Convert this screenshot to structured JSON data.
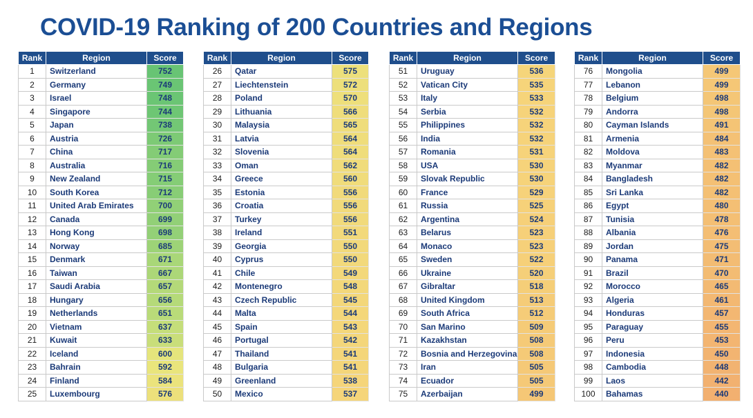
{
  "title": "COVID-19 Ranking of 200 Countries and Regions",
  "headers": {
    "rank": "Rank",
    "region": "Region",
    "score": "Score"
  },
  "score_scale": {
    "max": 752,
    "min": 440
  },
  "tables": [
    [
      {
        "rank": "1",
        "region": "Switzerland",
        "score": 752
      },
      {
        "rank": "2",
        "region": "Germany",
        "score": 749
      },
      {
        "rank": "3",
        "region": "Israel",
        "score": 748
      },
      {
        "rank": "4",
        "region": "Singapore",
        "score": 744
      },
      {
        "rank": "5",
        "region": "Japan",
        "score": 738
      },
      {
        "rank": "6",
        "region": "Austria",
        "score": 726
      },
      {
        "rank": "7",
        "region": "China",
        "score": 717
      },
      {
        "rank": "8",
        "region": "Australia",
        "score": 716
      },
      {
        "rank": "9",
        "region": "New Zealand",
        "score": 715
      },
      {
        "rank": "10",
        "region": "South Korea",
        "score": 712
      },
      {
        "rank": "11",
        "region": "United Arab Emirates",
        "score": 700
      },
      {
        "rank": "12",
        "region": "Canada",
        "score": 699
      },
      {
        "rank": "13",
        "region": "Hong Kong",
        "score": 698
      },
      {
        "rank": "14",
        "region": "Norway",
        "score": 685
      },
      {
        "rank": "15",
        "region": "Denmark",
        "score": 671
      },
      {
        "rank": "16",
        "region": "Taiwan",
        "score": 667
      },
      {
        "rank": "17",
        "region": "Saudi Arabia",
        "score": 657
      },
      {
        "rank": "18",
        "region": "Hungary",
        "score": 656
      },
      {
        "rank": "19",
        "region": "Netherlands",
        "score": 651
      },
      {
        "rank": "20",
        "region": "Vietnam",
        "score": 637
      },
      {
        "rank": "21",
        "region": "Kuwait",
        "score": 633
      },
      {
        "rank": "22",
        "region": "Iceland",
        "score": 600
      },
      {
        "rank": "23",
        "region": "Bahrain",
        "score": 592
      },
      {
        "rank": "24",
        "region": "Finland",
        "score": 584
      },
      {
        "rank": "25",
        "region": "Luxembourg",
        "score": 576
      }
    ],
    [
      {
        "rank": "26",
        "region": "Qatar",
        "score": 575
      },
      {
        "rank": "27",
        "region": "Liechtenstein",
        "score": 572
      },
      {
        "rank": "28",
        "region": "Poland",
        "score": 570
      },
      {
        "rank": "29",
        "region": "Lithuania",
        "score": 566
      },
      {
        "rank": "30",
        "region": "Malaysia",
        "score": 565
      },
      {
        "rank": "31",
        "region": "Latvia",
        "score": 564
      },
      {
        "rank": "32",
        "region": "Slovenia",
        "score": 564
      },
      {
        "rank": "33",
        "region": "Oman",
        "score": 562
      },
      {
        "rank": "34",
        "region": "Greece",
        "score": 560
      },
      {
        "rank": "35",
        "region": "Estonia",
        "score": 556
      },
      {
        "rank": "36",
        "region": "Croatia",
        "score": 556
      },
      {
        "rank": "37",
        "region": "Turkey",
        "score": 556
      },
      {
        "rank": "38",
        "region": "Ireland",
        "score": 551
      },
      {
        "rank": "39",
        "region": "Georgia",
        "score": 550
      },
      {
        "rank": "40",
        "region": "Cyprus",
        "score": 550
      },
      {
        "rank": "41",
        "region": "Chile",
        "score": 549
      },
      {
        "rank": "42",
        "region": "Montenegro",
        "score": 548
      },
      {
        "rank": "43",
        "region": "Czech Republic",
        "score": 545
      },
      {
        "rank": "44",
        "region": "Malta",
        "score": 544
      },
      {
        "rank": "45",
        "region": "Spain",
        "score": 543
      },
      {
        "rank": "46",
        "region": "Portugal",
        "score": 542
      },
      {
        "rank": "47",
        "region": "Thailand",
        "score": 541
      },
      {
        "rank": "48",
        "region": "Bulgaria",
        "score": 541
      },
      {
        "rank": "49",
        "region": "Greenland",
        "score": 538
      },
      {
        "rank": "50",
        "region": "Mexico",
        "score": 537
      }
    ],
    [
      {
        "rank": "51",
        "region": "Uruguay",
        "score": 536
      },
      {
        "rank": "52",
        "region": "Vatican City",
        "score": 535
      },
      {
        "rank": "53",
        "region": "Italy",
        "score": 533
      },
      {
        "rank": "54",
        "region": "Serbia",
        "score": 532
      },
      {
        "rank": "55",
        "region": "Philippines",
        "score": 532
      },
      {
        "rank": "56",
        "region": "India",
        "score": 532
      },
      {
        "rank": "57",
        "region": "Romania",
        "score": 531
      },
      {
        "rank": "58",
        "region": "USA",
        "score": 530
      },
      {
        "rank": "59",
        "region": "Slovak Republic",
        "score": 530
      },
      {
        "rank": "60",
        "region": "France",
        "score": 529
      },
      {
        "rank": "61",
        "region": "Russia",
        "score": 525
      },
      {
        "rank": "62",
        "region": "Argentina",
        "score": 524
      },
      {
        "rank": "63",
        "region": "Belarus",
        "score": 523
      },
      {
        "rank": "64",
        "region": "Monaco",
        "score": 523
      },
      {
        "rank": "65",
        "region": "Sweden",
        "score": 522
      },
      {
        "rank": "66",
        "region": "Ukraine",
        "score": 520
      },
      {
        "rank": "67",
        "region": "Gibraltar",
        "score": 518
      },
      {
        "rank": "68",
        "region": "United Kingdom",
        "score": 513
      },
      {
        "rank": "69",
        "region": "South Africa",
        "score": 512
      },
      {
        "rank": "70",
        "region": "San Marino",
        "score": 509
      },
      {
        "rank": "71",
        "region": "Kazakhstan",
        "score": 508
      },
      {
        "rank": "72",
        "region": "Bosnia and Herzegovina",
        "score": 508
      },
      {
        "rank": "73",
        "region": "Iran",
        "score": 505
      },
      {
        "rank": "74",
        "region": "Ecuador",
        "score": 505
      },
      {
        "rank": "75",
        "region": "Azerbaijan",
        "score": 499
      }
    ],
    [
      {
        "rank": "76",
        "region": "Mongolia",
        "score": 499
      },
      {
        "rank": "77",
        "region": "Lebanon",
        "score": 499
      },
      {
        "rank": "78",
        "region": "Belgium",
        "score": 498
      },
      {
        "rank": "79",
        "region": "Andorra",
        "score": 498
      },
      {
        "rank": "80",
        "region": "Cayman Islands",
        "score": 491
      },
      {
        "rank": "81",
        "region": "Armenia",
        "score": 484
      },
      {
        "rank": "82",
        "region": "Moldova",
        "score": 483
      },
      {
        "rank": "83",
        "region": "Myanmar",
        "score": 482
      },
      {
        "rank": "84",
        "region": "Bangladesh",
        "score": 482
      },
      {
        "rank": "85",
        "region": "Sri Lanka",
        "score": 482
      },
      {
        "rank": "86",
        "region": "Egypt",
        "score": 480
      },
      {
        "rank": "87",
        "region": "Tunisia",
        "score": 478
      },
      {
        "rank": "88",
        "region": "Albania",
        "score": 476
      },
      {
        "rank": "89",
        "region": "Jordan",
        "score": 475
      },
      {
        "rank": "90",
        "region": "Panama",
        "score": 471
      },
      {
        "rank": "91",
        "region": "Brazil",
        "score": 470
      },
      {
        "rank": "92",
        "region": "Morocco",
        "score": 465
      },
      {
        "rank": "93",
        "region": "Algeria",
        "score": 461
      },
      {
        "rank": "94",
        "region": "Honduras",
        "score": 457
      },
      {
        "rank": "95",
        "region": "Paraguay",
        "score": 455
      },
      {
        "rank": "96",
        "region": "Peru",
        "score": 453
      },
      {
        "rank": "97",
        "region": "Indonesia",
        "score": 450
      },
      {
        "rank": "98",
        "region": "Cambodia",
        "score": 448
      },
      {
        "rank": "99",
        "region": "Laos",
        "score": 442
      },
      {
        "rank": "100",
        "region": "Bahamas",
        "score": 440
      }
    ]
  ]
}
